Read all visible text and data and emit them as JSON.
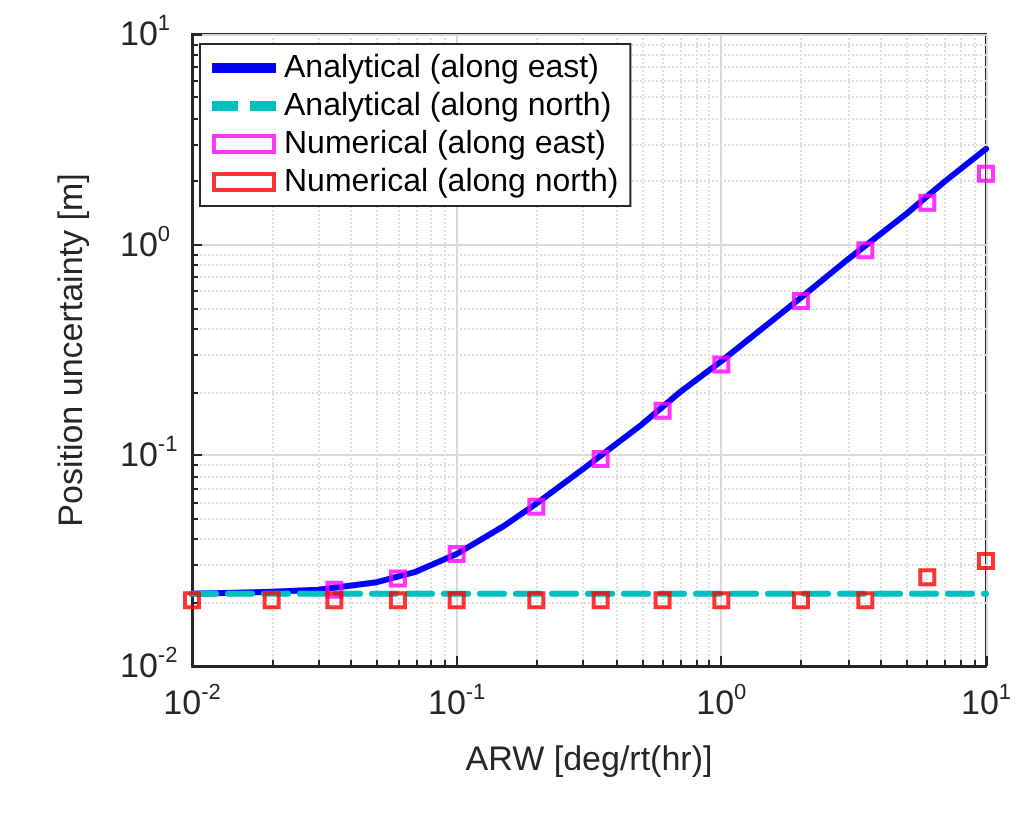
{
  "chart_data": {
    "type": "line",
    "xlabel": "ARW [deg/rt(hr)]",
    "ylabel": "Position uncertainty [m]",
    "log": "xy",
    "grid": true,
    "legend": "top left",
    "xlim": [
      0.01,
      10
    ],
    "ylim": [
      0.01,
      10
    ],
    "xticks": [
      {
        "value": 0.01,
        "label": "10$^{-2}$"
      },
      {
        "value": 0.1,
        "label": "10$^{-1}$"
      },
      {
        "value": 1,
        "label": "10$^{0}$"
      },
      {
        "value": 10,
        "label": "10$^{1}$"
      }
    ],
    "yticks": [
      {
        "value": 0.01,
        "label": "10$^{-2}$"
      },
      {
        "value": 0.1,
        "label": "10$^{-1}$"
      },
      {
        "value": 1,
        "label": "10$^{0}$"
      },
      {
        "value": 10,
        "label": "10$^{1}$"
      }
    ],
    "series": [
      {
        "name": "Analytical (along east)",
        "type": "line",
        "color": "#0000ff",
        "marker": "none",
        "line_style": "solid",
        "x": [
          0.01,
          0.02,
          0.03,
          0.05,
          0.07,
          0.1,
          0.15,
          0.2,
          0.3,
          0.5,
          0.7,
          1,
          2,
          3,
          5,
          7,
          10
        ],
        "values": [
          0.022,
          0.0225,
          0.023,
          0.025,
          0.028,
          0.034,
          0.046,
          0.059,
          0.086,
          0.14,
          0.2,
          0.28,
          0.56,
          0.85,
          1.4,
          2.0,
          2.85
        ]
      },
      {
        "name": "Analytical (along north)",
        "type": "line",
        "color": "#00bfbf",
        "marker": "none",
        "line_style": "dashed",
        "x": [
          0.01,
          10
        ],
        "values": [
          0.022,
          0.022
        ]
      },
      {
        "name": "Numerical (along east)",
        "type": "scatter",
        "color": "#ff00ff",
        "marker": "square",
        "x": [
          0.0345,
          0.06,
          0.1,
          0.2,
          0.35,
          0.6,
          1,
          2,
          3.5,
          6,
          10
        ],
        "values": [
          0.023,
          0.026,
          0.034,
          0.057,
          0.096,
          0.163,
          0.27,
          0.54,
          0.94,
          1.58,
          2.17
        ]
      },
      {
        "name": "Numerical (along north)",
        "type": "scatter",
        "color": "#ff0000",
        "marker": "square",
        "x": [
          0.01,
          0.02,
          0.0345,
          0.06,
          0.1,
          0.2,
          0.35,
          0.6,
          1,
          2,
          3.5,
          6,
          10
        ],
        "values": [
          0.0205,
          0.0205,
          0.0205,
          0.0205,
          0.0205,
          0.0205,
          0.0205,
          0.0205,
          0.0205,
          0.0205,
          0.0205,
          0.0264,
          0.0315
        ]
      }
    ]
  }
}
